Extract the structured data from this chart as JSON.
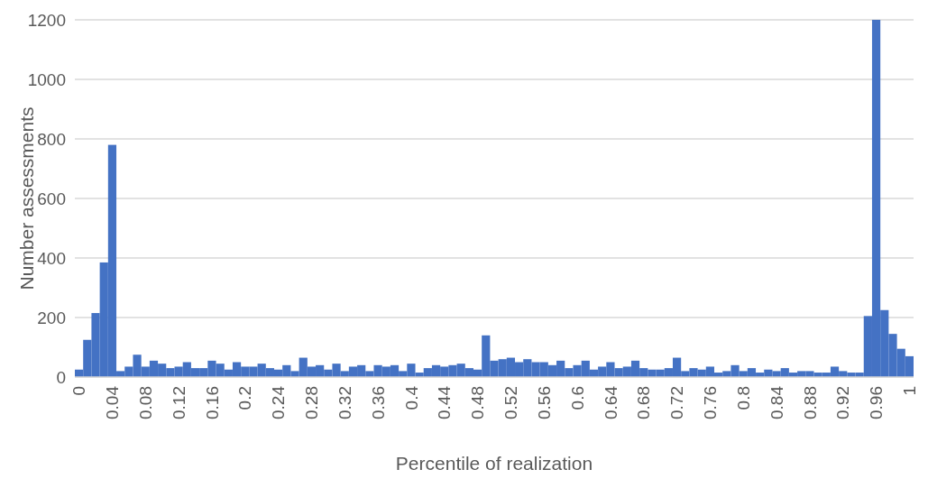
{
  "chart_data": {
    "type": "bar",
    "xlabel": "Percentile of realization",
    "ylabel": "Number assessments",
    "categories": [
      "0",
      null,
      null,
      null,
      "0.04",
      null,
      null,
      null,
      "0.08",
      null,
      null,
      null,
      "0.12",
      null,
      null,
      null,
      "0.16",
      null,
      null,
      null,
      "0.2",
      null,
      null,
      null,
      "0.24",
      null,
      null,
      null,
      "0.28",
      null,
      null,
      null,
      "0.32",
      null,
      null,
      null,
      "0.36",
      null,
      null,
      null,
      "0.4",
      null,
      null,
      null,
      "0.44",
      null,
      null,
      null,
      "0.48",
      null,
      null,
      null,
      "0.52",
      null,
      null,
      null,
      "0.56",
      null,
      null,
      null,
      "0.6",
      null,
      null,
      null,
      "0.64",
      null,
      null,
      null,
      "0.68",
      null,
      null,
      null,
      "0.72",
      null,
      null,
      null,
      "0.76",
      null,
      null,
      null,
      "0.8",
      null,
      null,
      null,
      "0.84",
      null,
      null,
      null,
      "0.88",
      null,
      null,
      null,
      "0.92",
      null,
      null,
      null,
      "0.96",
      null,
      null,
      null,
      "1"
    ],
    "values": [
      25,
      125,
      215,
      385,
      780,
      20,
      35,
      75,
      35,
      55,
      45,
      30,
      35,
      50,
      30,
      30,
      55,
      45,
      25,
      50,
      35,
      35,
      45,
      30,
      25,
      40,
      20,
      65,
      35,
      40,
      25,
      45,
      20,
      35,
      40,
      20,
      40,
      35,
      40,
      20,
      45,
      15,
      30,
      40,
      35,
      40,
      45,
      30,
      25,
      140,
      55,
      60,
      65,
      50,
      60,
      50,
      50,
      40,
      55,
      30,
      40,
      55,
      25,
      35,
      50,
      30,
      35,
      55,
      30,
      25,
      25,
      30,
      65,
      20,
      30,
      25,
      35,
      15,
      20,
      40,
      20,
      30,
      15,
      25,
      20,
      30,
      15,
      20,
      20,
      15,
      15,
      35,
      20,
      15,
      15,
      205,
      1200,
      225,
      145,
      95,
      70
    ],
    "color": "#4472c4",
    "ylim": [
      0,
      1200
    ],
    "yticks": [
      0,
      200,
      400,
      600,
      800,
      1000,
      1200
    ],
    "grid": "y"
  }
}
